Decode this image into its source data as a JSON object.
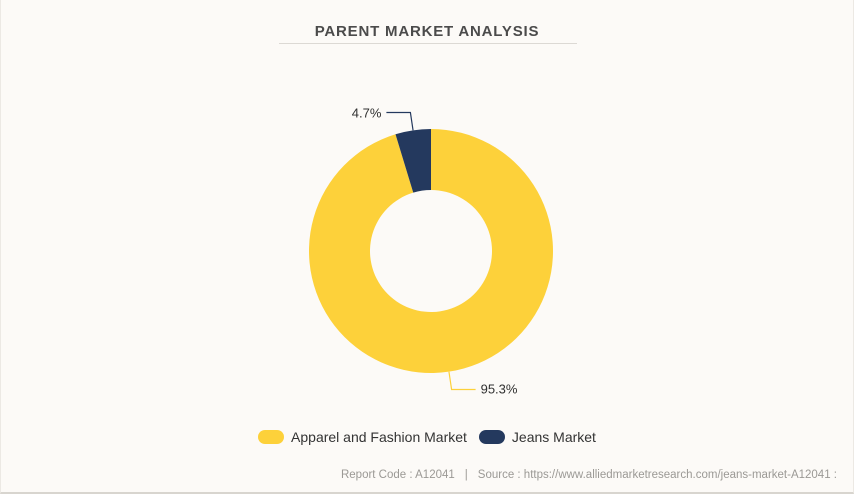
{
  "header": {
    "title": "PARENT MARKET ANALYSIS"
  },
  "chart_data": {
    "type": "pie",
    "subtype": "donut",
    "title": "PARENT MARKET ANALYSIS",
    "categories": [
      "Apparel and Fashion Market",
      "Jeans Market"
    ],
    "values": [
      95.3,
      4.7
    ],
    "slice_labels": [
      "95.3%",
      "4.7%"
    ],
    "colors": [
      "#FDD13A",
      "#24395E"
    ],
    "legend_position": "bottom",
    "start_angle_deg": 0,
    "direction": "clockwise",
    "background": "#FCFAF7"
  },
  "footer": {
    "report_code": "Report Code : A12041",
    "separator": "|",
    "source": "Source : https://www.alliedmarketresearch.com/jeans-market-A12041 :"
  }
}
